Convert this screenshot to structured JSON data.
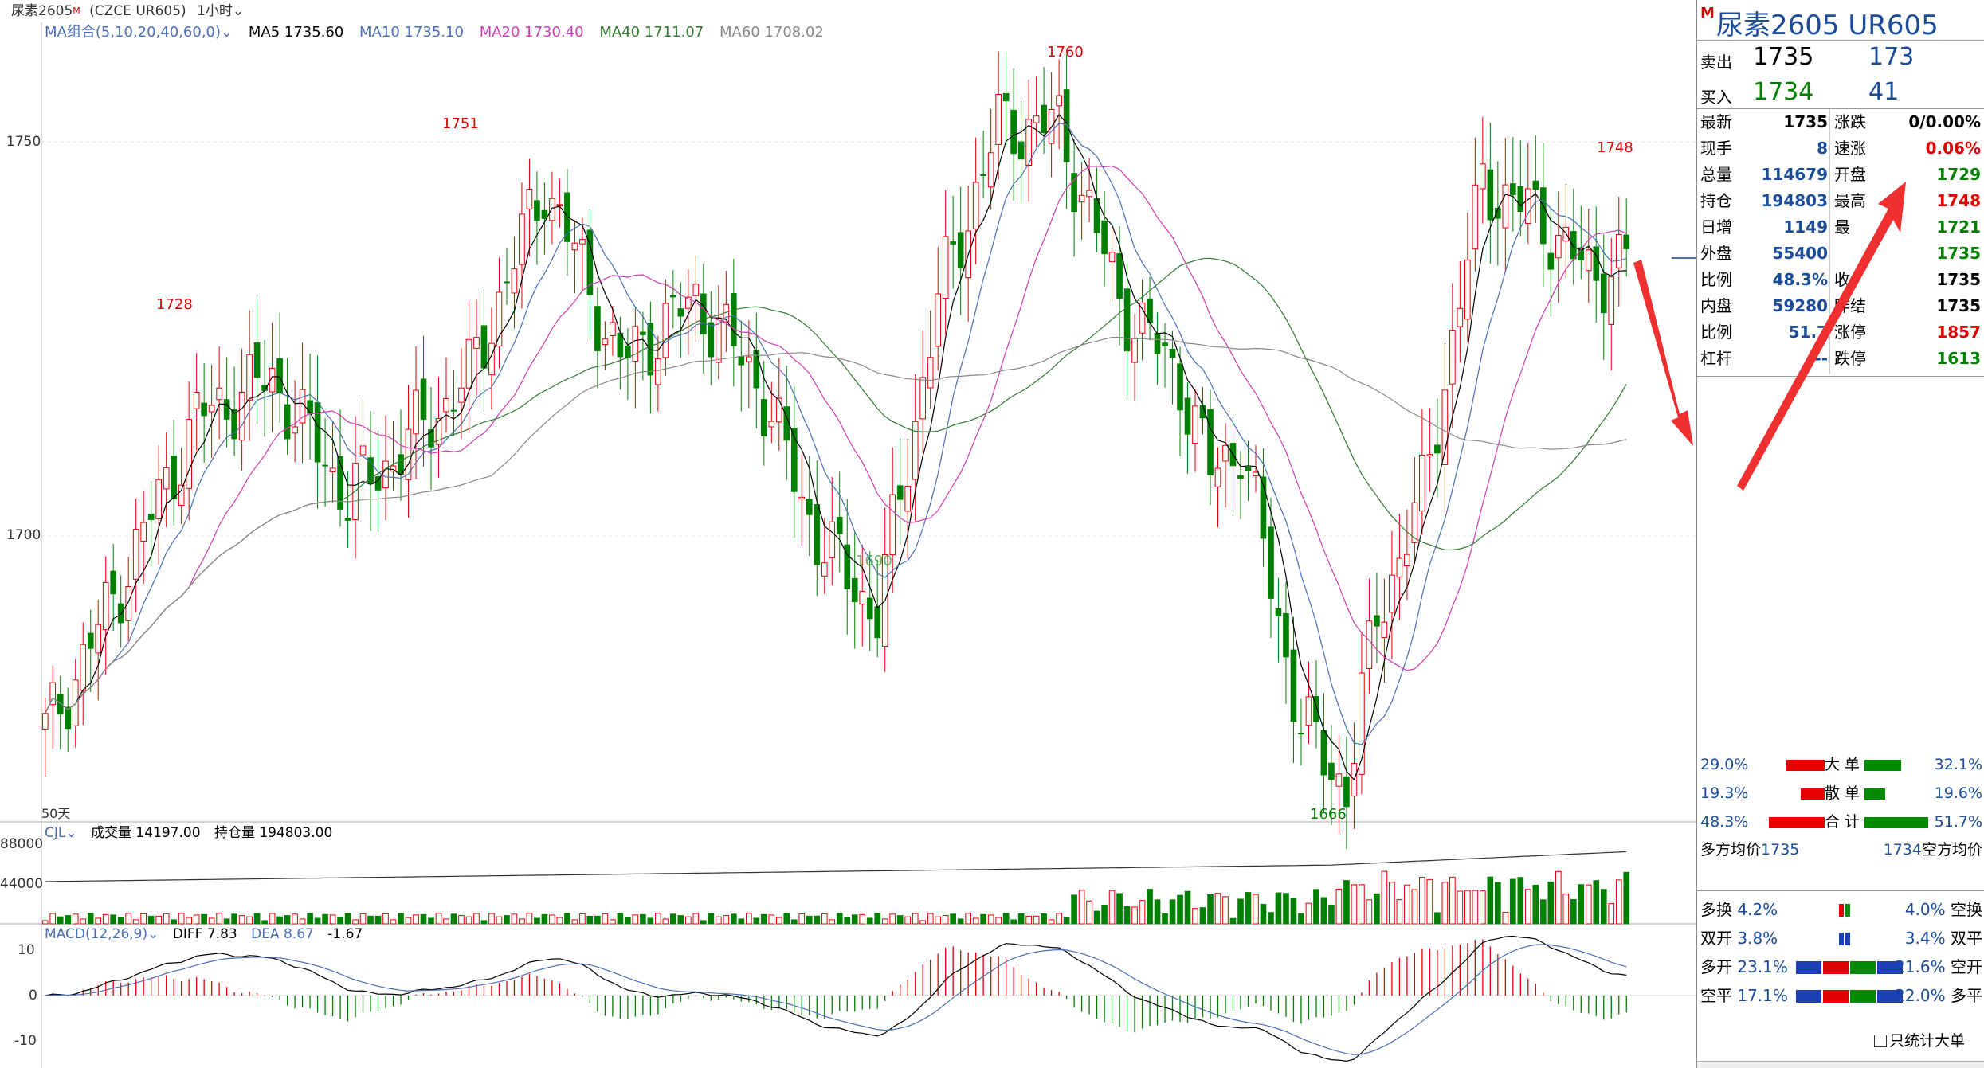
{
  "topbar": {
    "symbol_name": "尿素2605",
    "flag": "M",
    "code": "(CZCE UR605)",
    "period": "1小时"
  },
  "ma_legend": {
    "label": "MA组合(5,10,20,40,60,0)",
    "ma5": "MA5 1735.60",
    "ma10": "MA10 1735.10",
    "ma20": "MA20 1730.40",
    "ma40": "MA40 1711.07",
    "ma60": "MA60 1708.02"
  },
  "main_axis": {
    "y_1750": "1750",
    "y_1700": "1700",
    "bars_label": "50天"
  },
  "annotations": {
    "a1728": "1728",
    "a1751": "1751",
    "a1760": "1760",
    "a1748": "1748",
    "a1666": "1666",
    "a1690": "1690"
  },
  "volume_legend": {
    "label": "CJL",
    "volume": "成交量 14197.00",
    "oi": "持仓量 194803.00"
  },
  "volume_axis": {
    "y1": "88000",
    "y2": "44000"
  },
  "macd_legend": {
    "label": "MACD(12,26,9)",
    "diff": "DIFF 7.83",
    "dea": "DEA 8.67",
    "macd": "-1.67"
  },
  "macd_axis": {
    "y1": "10",
    "y0": "0",
    "y2": "-10"
  },
  "colors": {
    "up": "#e00000",
    "down": "#008000",
    "ma5": "#000000",
    "ma10": "#4a6fb5",
    "ma20": "#d23cb4",
    "ma40": "#2f7a2f",
    "ma60": "#888888",
    "panel_title": "#1b4c9a",
    "arrow": "#f03030"
  },
  "panel": {
    "flag": "M",
    "title": "尿素2605  UR605",
    "sell": {
      "label": "卖出",
      "price": "1735",
      "qty": "173"
    },
    "buy": {
      "label": "买入",
      "price": "1734",
      "qty": "41"
    },
    "left_rows": [
      {
        "k": "最新",
        "v": "1735"
      },
      {
        "k": "现手",
        "v": "8"
      },
      {
        "k": "总量",
        "v": "114679"
      },
      {
        "k": "持仓",
        "v": "194803"
      },
      {
        "k": "日增",
        "v": "1149"
      },
      {
        "k": "外盘",
        "v": "55400"
      },
      {
        "k": "比例",
        "v": "48.3%"
      },
      {
        "k": "内盘",
        "v": "59280"
      },
      {
        "k": "比例",
        "v": "51.7"
      },
      {
        "k": "杠杆",
        "v": "--"
      }
    ],
    "right_rows": [
      {
        "k": "涨跌",
        "v": "0/0.00%"
      },
      {
        "k": "速涨",
        "v": "0.06%"
      },
      {
        "k": "开盘",
        "v": "1729"
      },
      {
        "k": "最高",
        "v": "1748"
      },
      {
        "k": "最",
        "v": "1721"
      },
      {
        "k": "",
        "v": "1735"
      },
      {
        "k": "收",
        "v": "1735"
      },
      {
        "k": "昨结",
        "v": "1735"
      },
      {
        "k": "涨停",
        "v": "1857"
      },
      {
        "k": "跌停",
        "v": "1613"
      }
    ],
    "order_dist": [
      {
        "left": "29.0%",
        "label": "大 单",
        "right": "32.1%"
      },
      {
        "left": "19.3%",
        "label": "散 单",
        "right": "19.6%"
      },
      {
        "left": "48.3%",
        "label": "合 计",
        "right": "51.7%"
      }
    ],
    "avg": {
      "long_label": "多方均价",
      "long": "1735",
      "short": "1734",
      "short_label": "空方均价"
    },
    "positions": [
      {
        "k1": "多换",
        "v1": "4.2%",
        "v2": "4.0%",
        "k2": "空换"
      },
      {
        "k1": "双开",
        "v1": "3.8%",
        "v2": "3.4%",
        "k2": "双平"
      },
      {
        "k1": "多开",
        "v1": "23.1%",
        "v2": "21.6%",
        "k2": "空开"
      },
      {
        "k1": "空平",
        "v1": "17.1%",
        "v2": "22.0%",
        "k2": "多平"
      }
    ],
    "only_big": "只统计大单"
  }
}
